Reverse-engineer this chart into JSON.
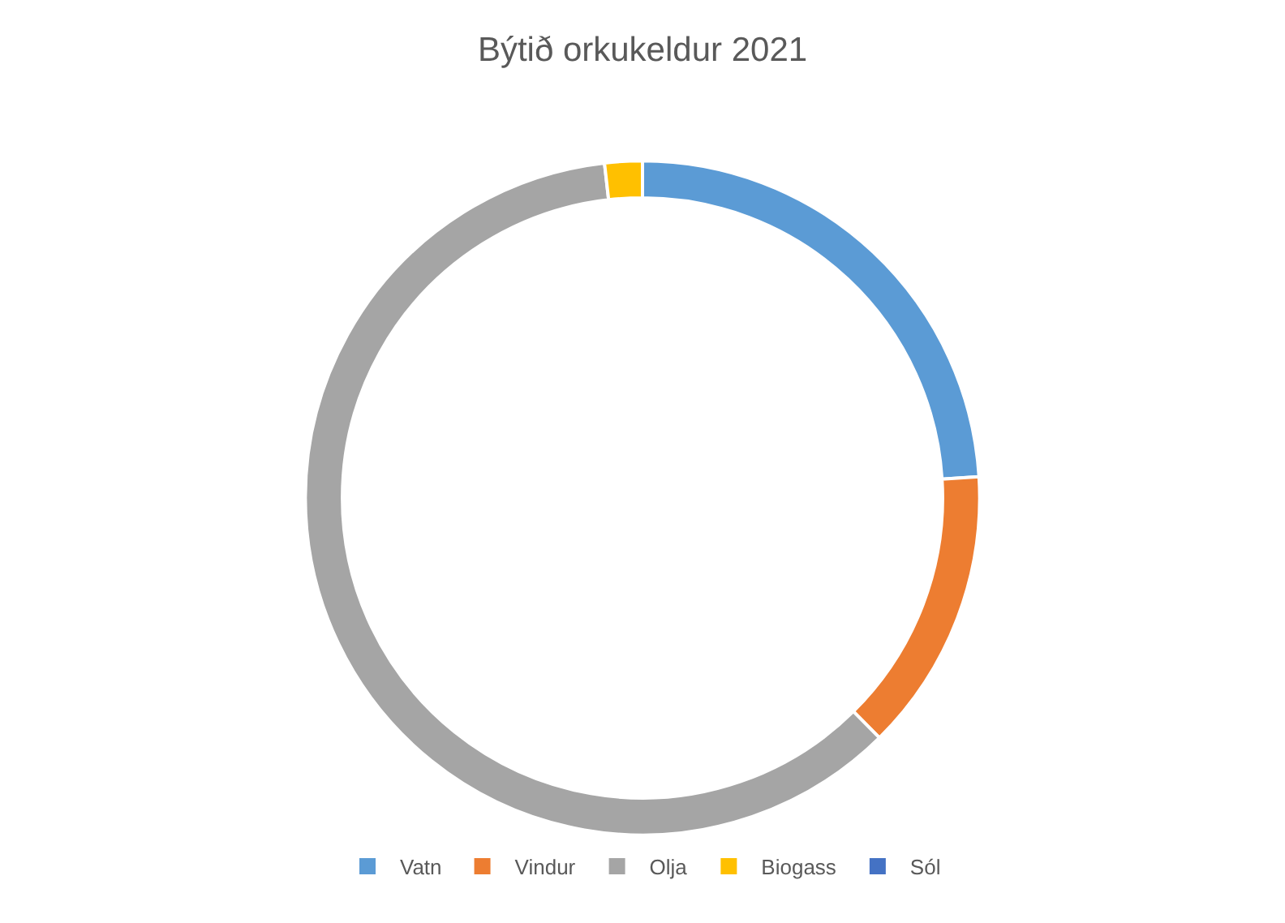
{
  "chart_data": {
    "type": "donut",
    "title": "Býtið orkukeldur 2021",
    "categories": [
      "Vatn",
      "Vindur",
      "Olja",
      "Biogass",
      "Sól"
    ],
    "values": [
      24,
      13.6,
      60.6,
      1.8,
      0
    ],
    "colors": [
      "#5b9bd5",
      "#ed7d31",
      "#a5a5a5",
      "#ffc000",
      "#4472c4"
    ],
    "legend": "bottom"
  }
}
